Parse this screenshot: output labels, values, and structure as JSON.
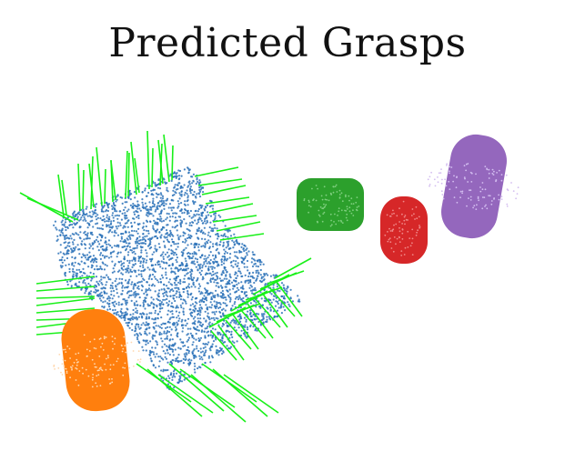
{
  "figure": {
    "title": "Predicted Grasps"
  },
  "colors": {
    "cloth": "#2b72b8",
    "grasp": "#19f019",
    "orange_object": "#ff7f0e",
    "green_object": "#2ca02c",
    "red_object": "#d62728",
    "purple_object": "#9467bd"
  },
  "objects": [
    {
      "name": "cloth-point-cloud",
      "color_key": "cloth"
    },
    {
      "name": "orange-cylinder",
      "color_key": "orange_object"
    },
    {
      "name": "green-box",
      "color_key": "green_object"
    },
    {
      "name": "red-cylinder",
      "color_key": "red_object"
    },
    {
      "name": "purple-cylinder",
      "color_key": "purple_object"
    }
  ]
}
